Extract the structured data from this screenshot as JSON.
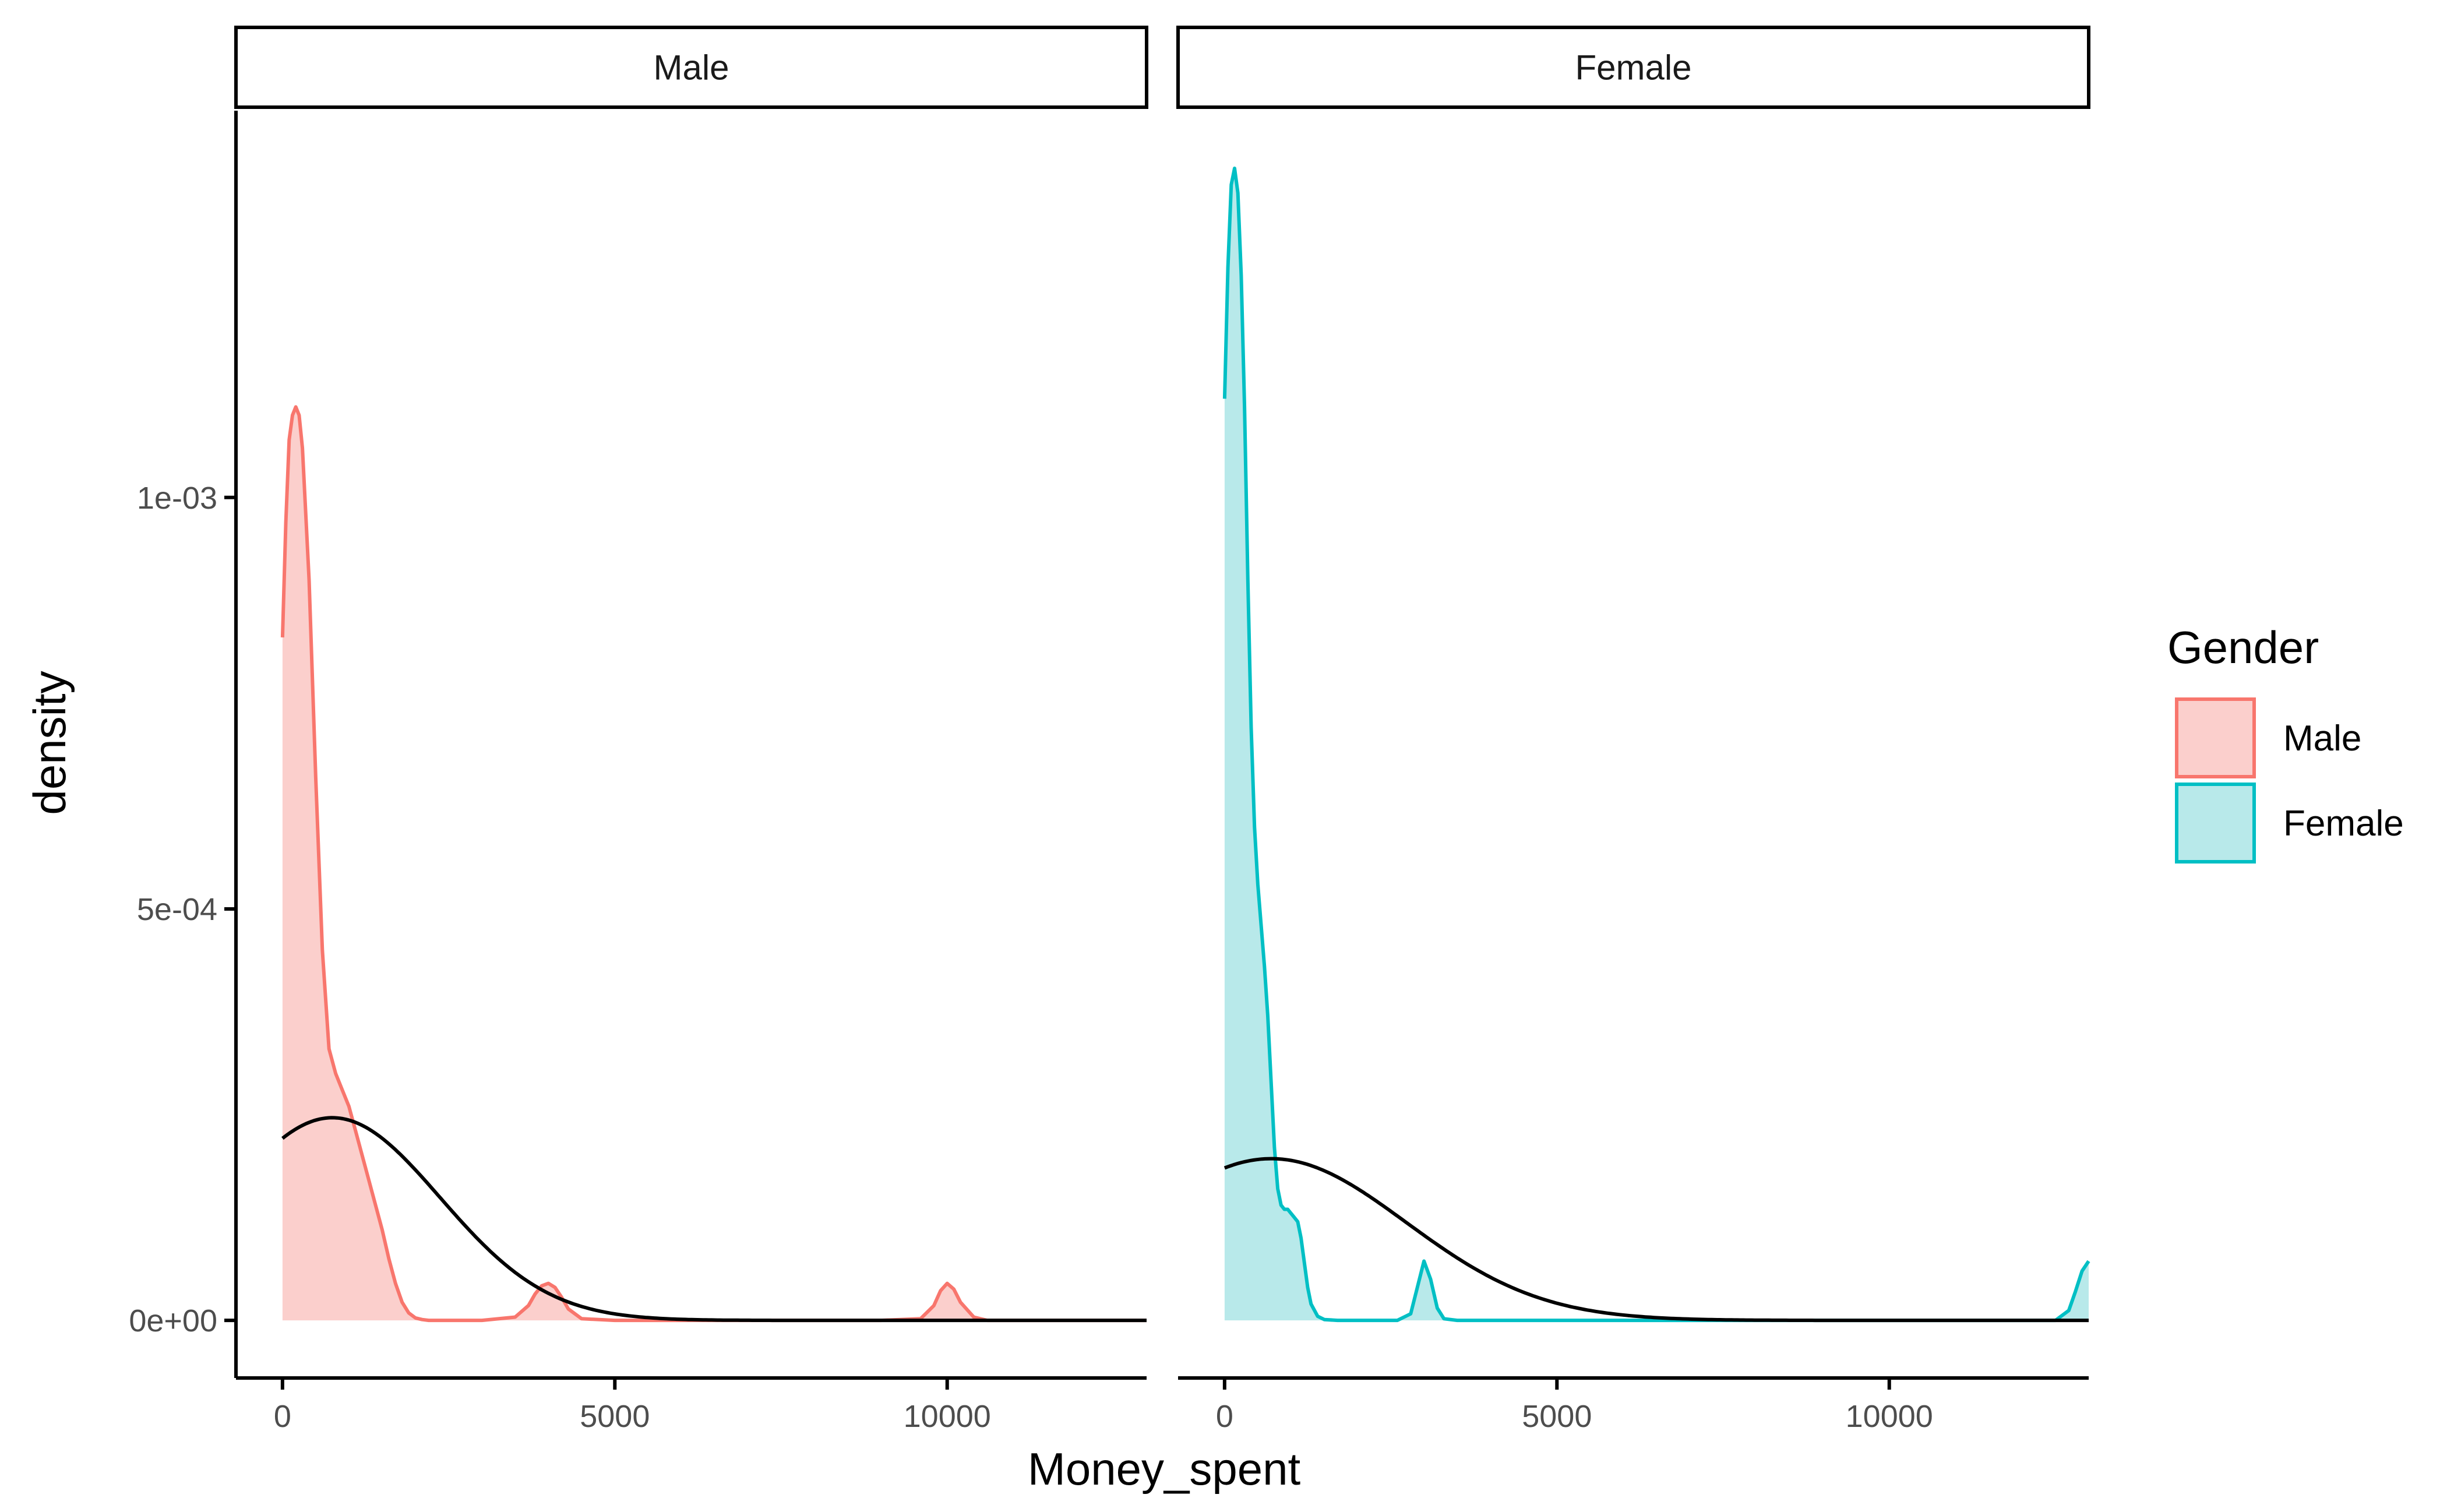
{
  "chart_data": {
    "type": "area",
    "subtype": "density with normal curve overlay, faceted by gender",
    "xlabel": "Money_spent",
    "ylabel": "density",
    "xlim": [
      -700,
      13000
    ],
    "ylim": [
      -7e-05,
      0.00147
    ],
    "x_ticks": [
      0,
      5000,
      10000
    ],
    "x_tick_labels": [
      "0",
      "5000",
      "10000"
    ],
    "y_ticks": [
      0,
      0.0005,
      0.001
    ],
    "y_tick_labels": [
      "0e+00",
      "5e-04",
      "1e-03"
    ],
    "grid": false,
    "legend": {
      "title": "Gender",
      "placement": "right",
      "items": [
        {
          "label": "Male",
          "line_color": "#F8766D",
          "fill_color": "#FBCFCC"
        },
        {
          "label": "Female",
          "line_color": "#00BFC4",
          "fill_color": "#B8E9EA"
        }
      ]
    },
    "normal_curve_color": "#000000",
    "facets": [
      {
        "strip_label": "Male",
        "line_color": "#F8766D",
        "fill_color": "#FBCFCC",
        "density": {
          "x": [
            0,
            50,
            100,
            150,
            200,
            250,
            300,
            400,
            500,
            600,
            700,
            800,
            900,
            1000,
            1100,
            1200,
            1300,
            1400,
            1500,
            1600,
            1700,
            1800,
            1900,
            2000,
            2100,
            2200,
            2500,
            3000,
            3500,
            3700,
            3800,
            3900,
            4000,
            4100,
            4200,
            4300,
            4500,
            5000,
            6000,
            7000,
            8000,
            9000,
            9600,
            9800,
            9900,
            10000,
            10100,
            10200,
            10400,
            10600
          ],
          "y": [
            0.00083,
            0.00097,
            0.00107,
            0.0011,
            0.00111,
            0.0011,
            0.00106,
            0.0009,
            0.00066,
            0.00045,
            0.00033,
            0.0003,
            0.00028,
            0.00026,
            0.00023,
            0.0002,
            0.00017,
            0.00014,
            0.00011,
            7.5e-05,
            4.5e-05,
            2.2e-05,
            9e-06,
            3e-06,
            1e-06,
            0,
            0,
            0,
            4e-06,
            1.8e-05,
            3.2e-05,
            4.2e-05,
            4.5e-05,
            4e-05,
            2.8e-05,
            1.4e-05,
            2e-06,
            0,
            0,
            0,
            0,
            0,
            2e-06,
            1.8e-05,
            3.6e-05,
            4.5e-05,
            3.8e-05,
            2.2e-05,
            4e-06,
            0
          ]
        },
        "normal": {
          "mean": 750,
          "sd": 1620,
          "x_range": [
            0,
            13000
          ]
        }
      },
      {
        "strip_label": "Female",
        "line_color": "#00BFC4",
        "fill_color": "#B8E9EA",
        "density": {
          "x": [
            0,
            50,
            100,
            150,
            200,
            250,
            300,
            350,
            400,
            450,
            500,
            550,
            600,
            650,
            700,
            750,
            800,
            850,
            900,
            950,
            1000,
            1050,
            1100,
            1150,
            1200,
            1250,
            1300,
            1400,
            1500,
            1700,
            2000,
            2600,
            2800,
            2900,
            3000,
            3100,
            3200,
            3300,
            3500,
            4000,
            6000,
            10000,
            12500,
            12700,
            12800,
            12900,
            13000
          ],
          "y": [
            0.00112,
            0.00128,
            0.00138,
            0.0014,
            0.00137,
            0.00127,
            0.00111,
            0.0009,
            0.00072,
            0.0006,
            0.00053,
            0.00048,
            0.00043,
            0.00037,
            0.00029,
            0.00021,
            0.00016,
            0.00014,
            0.000135,
            0.000135,
            0.00013,
            0.000125,
            0.00012,
            0.0001,
            7e-05,
            4e-05,
            2e-05,
            5e-06,
            1e-06,
            0,
            0,
            0,
            8e-06,
            4e-05,
            7.2e-05,
            5e-05,
            1.5e-05,
            2e-06,
            0,
            0,
            0,
            0,
            0,
            1.2e-05,
            3.5e-05,
            6e-05,
            7.2e-05
          ]
        },
        "normal": {
          "mean": 700,
          "sd": 2030,
          "x_range": [
            0,
            13000
          ]
        }
      }
    ]
  }
}
